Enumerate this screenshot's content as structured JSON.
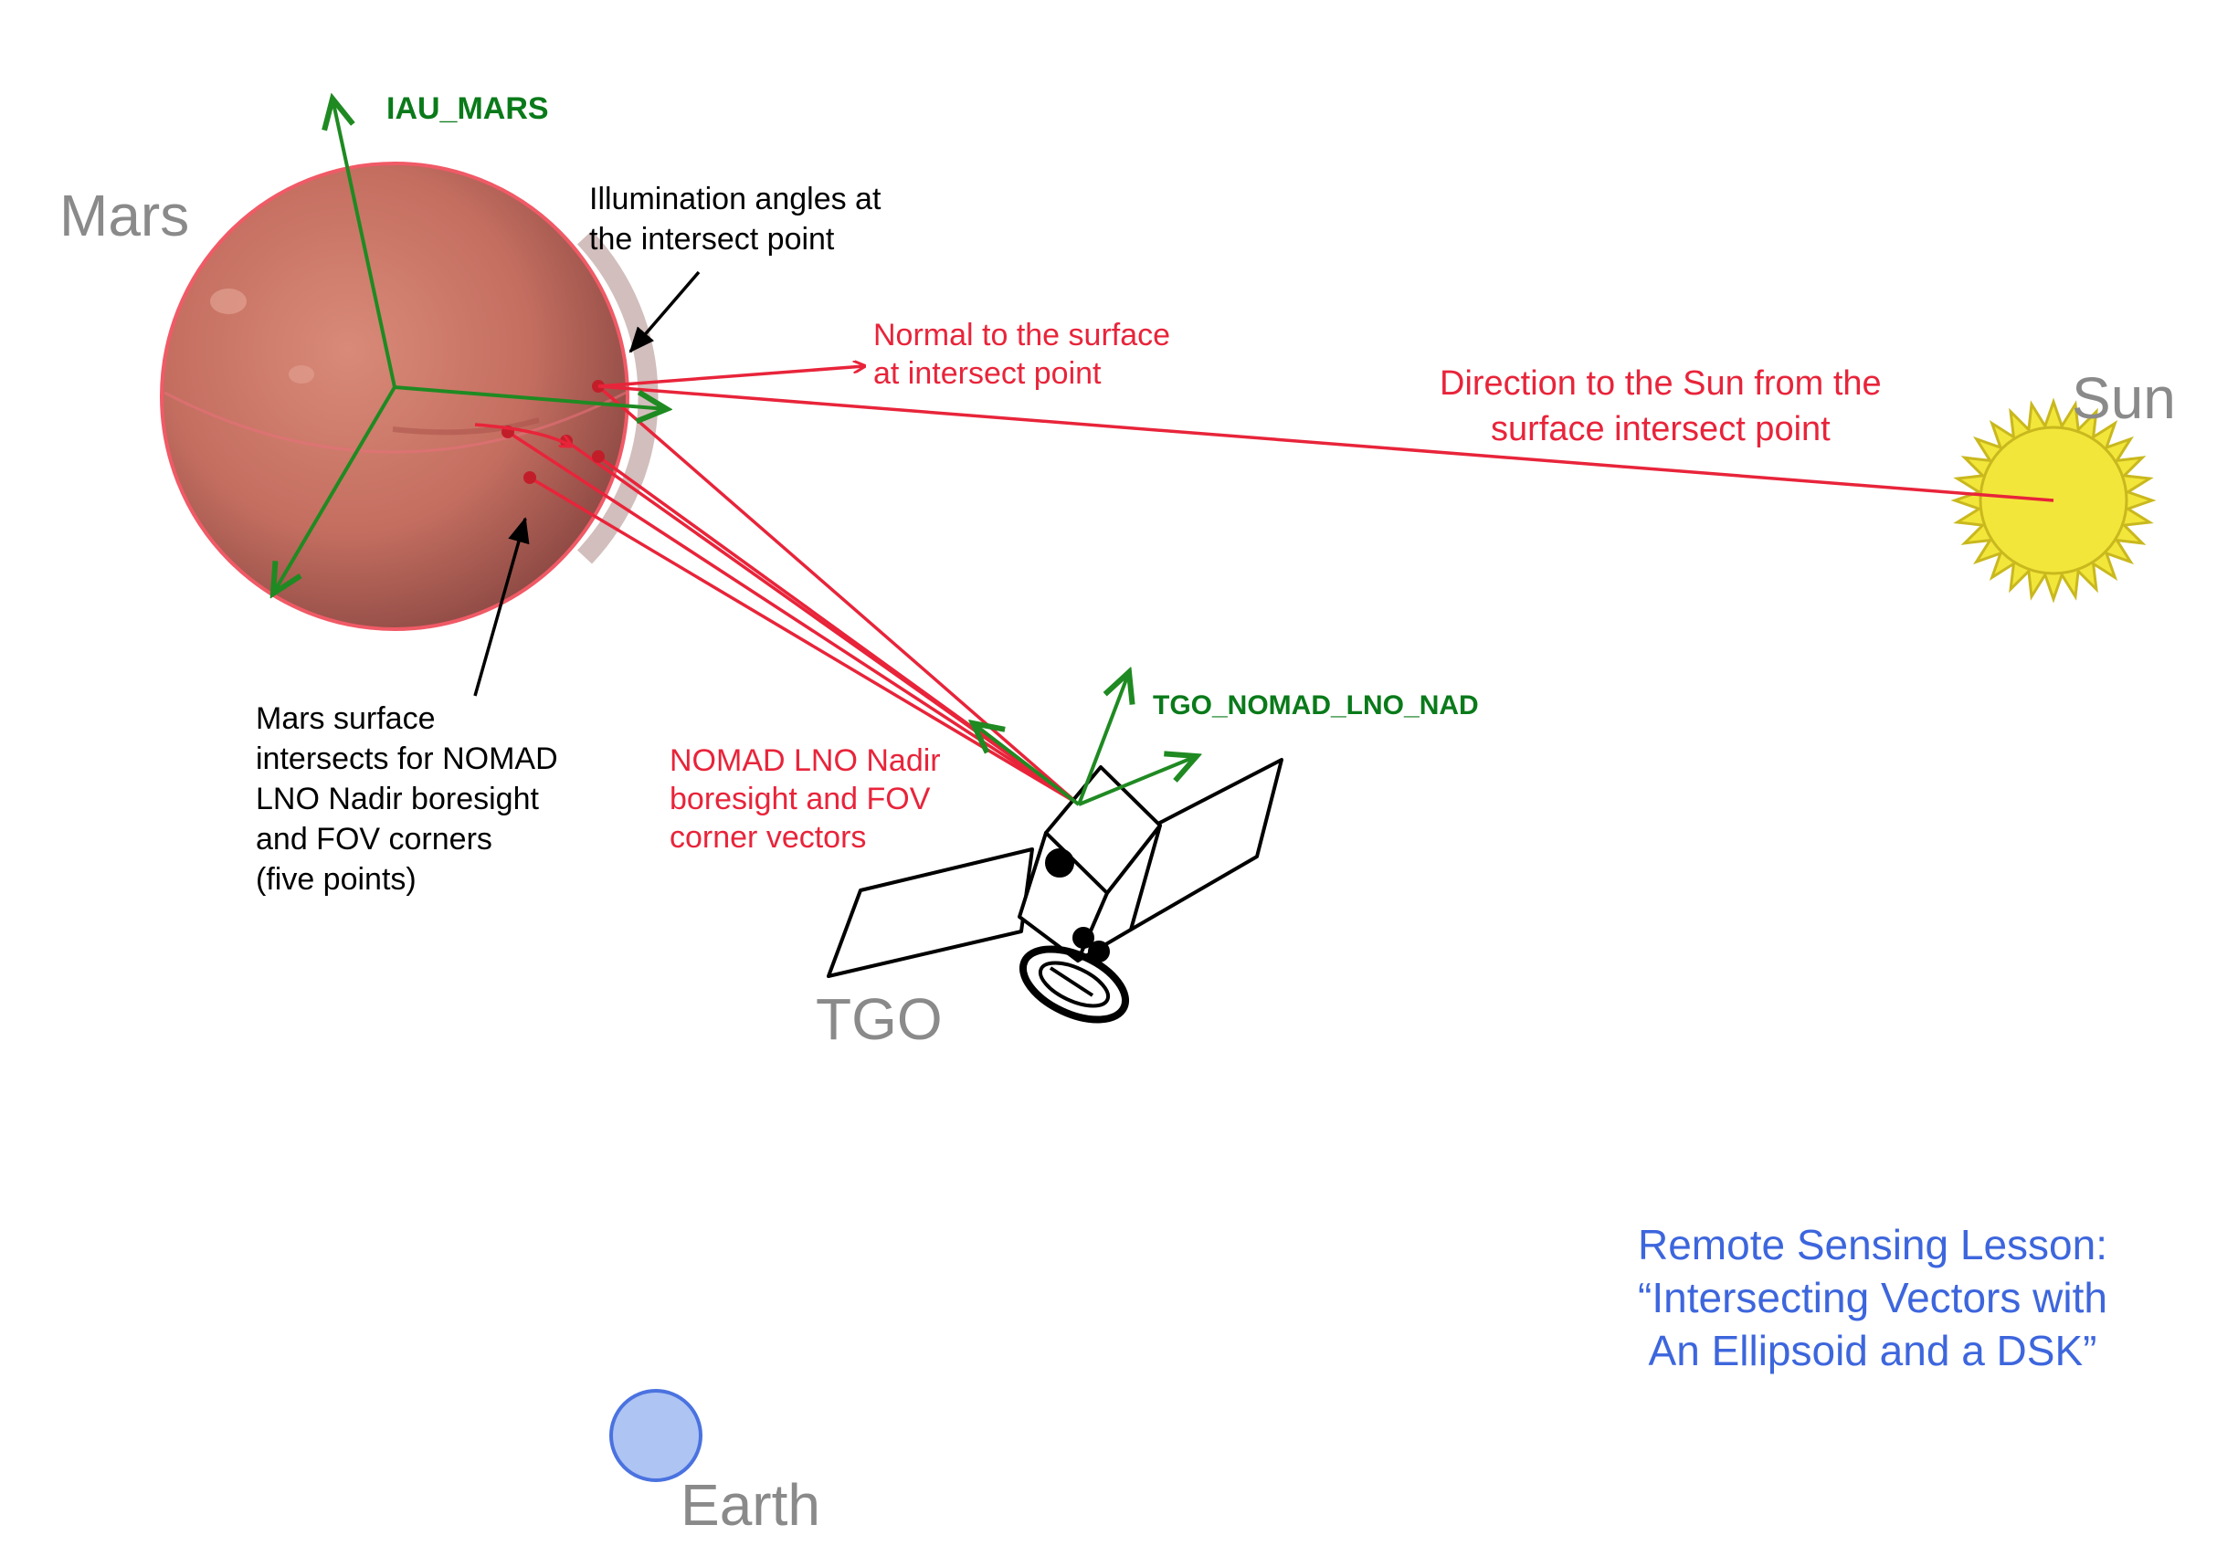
{
  "bodies": {
    "mars": "Mars",
    "sun": "Sun",
    "tgo": "TGO",
    "earth": "Earth"
  },
  "frames": {
    "mars_frame": "IAU_MARS",
    "instrument_frame": "TGO_NOMAD_LNO_NAD"
  },
  "annotations": {
    "illumination": "Illumination angles at\nthe intersect point",
    "normal": "Normal to the surface\nat intersect point",
    "sun_direction": "Direction to the Sun from the\nsurface intersect point",
    "intersects": "Mars surface\nintersects for NOMAD\nLNO Nadir boresight\nand FOV corners\n(five points)",
    "boresight": "NOMAD LNO Nadir\nboresight and FOV\ncorner vectors"
  },
  "lesson_title": "Remote Sensing Lesson:\n“Intersecting Vectors with\nAn Ellipsoid and a DSK”",
  "colors": {
    "mars": "#c96a5c",
    "frame_green": "#1f8a22",
    "vector_red": "#e8243a",
    "sun_yellow": "#f2e63a",
    "earth_blue": "#aec4f2",
    "lesson_blue": "#3d66dd",
    "label_gray": "#8a8a8a"
  }
}
